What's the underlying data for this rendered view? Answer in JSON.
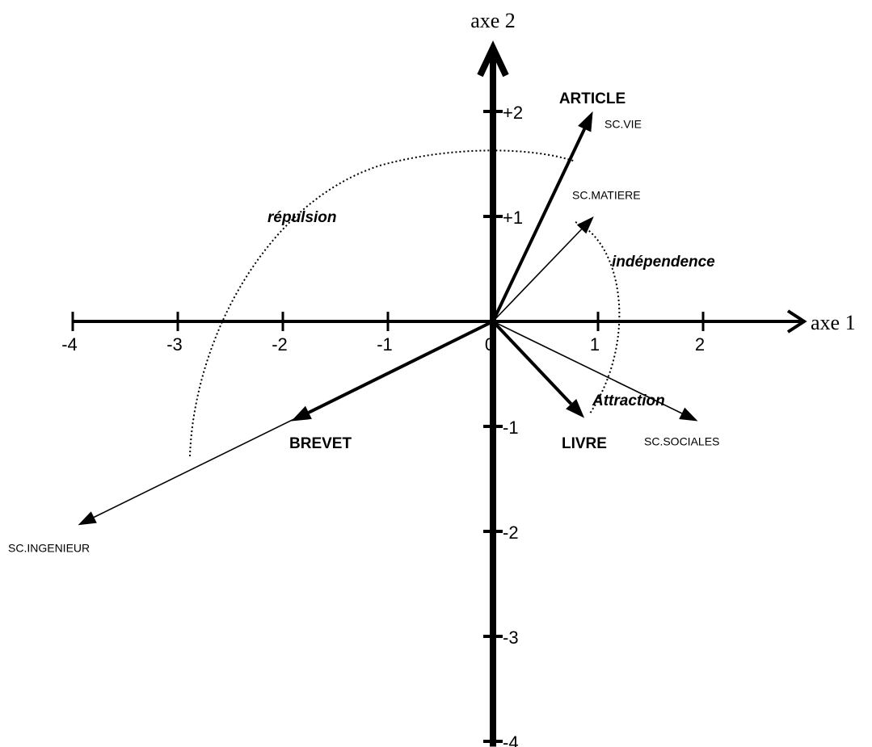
{
  "chart_data": {
    "type": "vector",
    "x_label": "axe 1",
    "y_label": "axe 2",
    "xlim": [
      -4,
      3
    ],
    "ylim": [
      -4.05,
      2.65
    ],
    "xticks": [
      -4,
      -3,
      -2,
      -1,
      0,
      1,
      2
    ],
    "yticks": [
      {
        "value": 2,
        "label": "+2"
      },
      {
        "value": 1,
        "label": "+1"
      },
      -1,
      -2,
      -3,
      -4
    ],
    "color": "#000000",
    "vectors": [
      {
        "name": "ARTICLE",
        "x": 0.95,
        "y": 2.0,
        "emphasis": true
      },
      {
        "name": "SC.VIE",
        "x": 0.95,
        "y": 2.0,
        "emphasis": false
      },
      {
        "name": "SC.MATIERE",
        "x": 0.96,
        "y": 1.0,
        "emphasis": false
      },
      {
        "name": "SC.SOCIALES",
        "x": 1.95,
        "y": -0.95,
        "emphasis": false
      },
      {
        "name": "LIVRE",
        "x": 0.87,
        "y": -0.92,
        "emphasis": true
      },
      {
        "name": "BREVET",
        "x": -1.92,
        "y": -0.95,
        "emphasis": true
      },
      {
        "name": "SC.INGENIEUR",
        "x": -3.95,
        "y": -1.94,
        "emphasis": false
      }
    ],
    "annotations": [
      "répulsion",
      "indépendence",
      "Attraction"
    ]
  }
}
